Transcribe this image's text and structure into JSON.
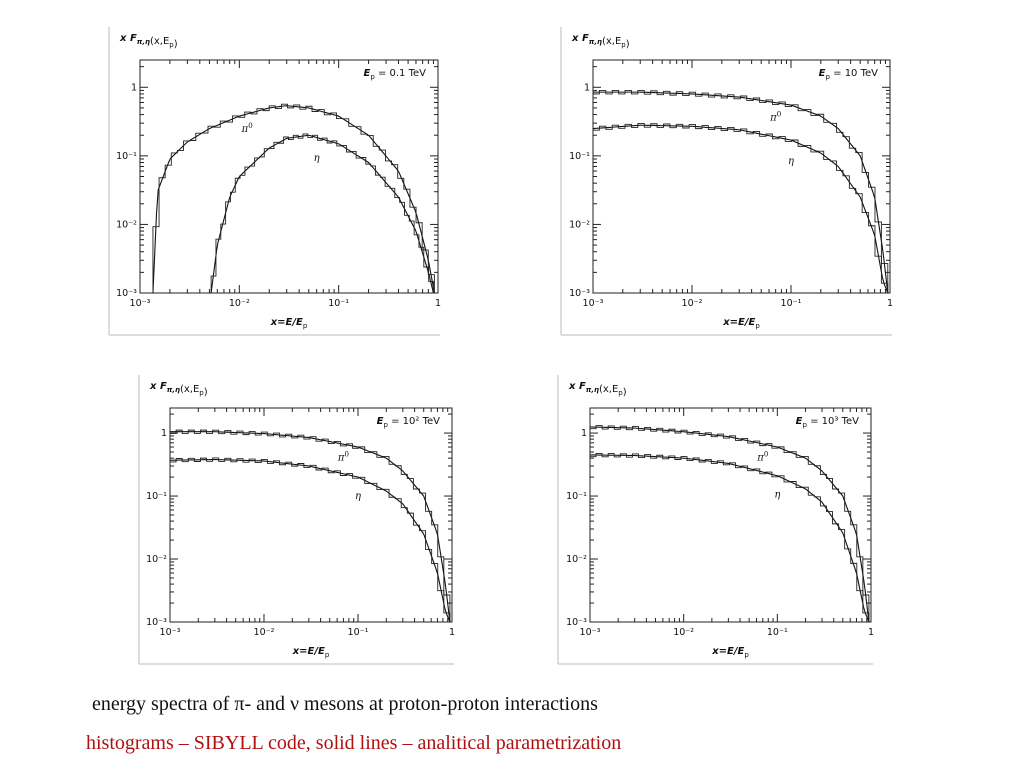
{
  "caption": {
    "line1": "energy spectra of  π- and ν mesons at proton-proton interactions",
    "line2": "histograms – SIBYLL code, solid lines – analitical parametrization"
  },
  "chart_data": [
    {
      "type": "line",
      "ylabel": "x F_{π,η}(x,E_p)",
      "xlabel": "x=E/E_p",
      "energy_label": "E_p = 0.1 TeV",
      "x_scale": "log",
      "y_scale": "log",
      "xlim": [
        0.001,
        1
      ],
      "ylim": [
        0.001,
        2.5
      ],
      "x_ticks": [
        "10⁻³",
        "10⁻²",
        "10⁻¹",
        "1"
      ],
      "y_ticks": [
        "10⁻³",
        "10⁻²",
        "10⁻¹",
        "1"
      ],
      "series": [
        {
          "name": "π⁰",
          "kind": "histogram+analytic",
          "x": [
            0.00135,
            0.0015,
            0.002,
            0.003,
            0.005,
            0.01,
            0.02,
            0.03,
            0.05,
            0.1,
            0.2,
            0.4,
            0.6,
            0.8,
            0.92
          ],
          "y": [
            0.001,
            0.03,
            0.09,
            0.16,
            0.25,
            0.38,
            0.5,
            0.54,
            0.5,
            0.38,
            0.2,
            0.06,
            0.015,
            0.003,
            0.001
          ]
        },
        {
          "name": "η",
          "kind": "histogram+analytic",
          "x": [
            0.0052,
            0.006,
            0.008,
            0.01,
            0.02,
            0.03,
            0.05,
            0.1,
            0.2,
            0.4,
            0.6,
            0.8,
            0.9
          ],
          "y": [
            0.001,
            0.005,
            0.025,
            0.05,
            0.13,
            0.18,
            0.2,
            0.15,
            0.08,
            0.025,
            0.008,
            0.002,
            0.001
          ]
        }
      ]
    },
    {
      "type": "line",
      "ylabel": "x F_{π,η}(x,E_p)",
      "xlabel": "x=E/E_p",
      "energy_label": "E_p = 10 TeV",
      "x_scale": "log",
      "y_scale": "log",
      "xlim": [
        0.001,
        1
      ],
      "ylim": [
        0.001,
        2.5
      ],
      "x_ticks": [
        "10⁻³",
        "10⁻²",
        "10⁻¹",
        "1"
      ],
      "y_ticks": [
        "10⁻³",
        "10⁻²",
        "10⁻¹",
        "1"
      ],
      "series": [
        {
          "name": "π⁰",
          "kind": "histogram+analytic",
          "x": [
            0.001,
            0.003,
            0.01,
            0.03,
            0.1,
            0.2,
            0.3,
            0.5,
            0.7,
            0.85,
            0.95
          ],
          "y": [
            0.85,
            0.85,
            0.8,
            0.72,
            0.55,
            0.38,
            0.25,
            0.1,
            0.025,
            0.004,
            0.001
          ]
        },
        {
          "name": "η",
          "kind": "histogram+analytic",
          "x": [
            0.001,
            0.003,
            0.01,
            0.03,
            0.1,
            0.2,
            0.3,
            0.5,
            0.7,
            0.85,
            0.95
          ],
          "y": [
            0.25,
            0.28,
            0.27,
            0.24,
            0.17,
            0.11,
            0.07,
            0.025,
            0.007,
            0.0015,
            0.001
          ]
        }
      ]
    },
    {
      "type": "line",
      "ylabel": "x F_{π,η}(x,E_p)",
      "xlabel": "x=E/E_p",
      "energy_label": "E_p = 10² TeV",
      "x_scale": "log",
      "y_scale": "log",
      "xlim": [
        0.001,
        1
      ],
      "ylim": [
        0.001,
        2.5
      ],
      "x_ticks": [
        "10⁻³",
        "10⁻²",
        "10⁻¹",
        "1"
      ],
      "y_ticks": [
        "10⁻³",
        "10⁻²",
        "10⁻¹",
        "1"
      ],
      "series": [
        {
          "name": "π⁰",
          "kind": "histogram+analytic",
          "x": [
            0.001,
            0.003,
            0.01,
            0.03,
            0.1,
            0.2,
            0.3,
            0.5,
            0.7,
            0.85,
            0.95
          ],
          "y": [
            1.05,
            1.05,
            0.98,
            0.85,
            0.6,
            0.4,
            0.25,
            0.1,
            0.025,
            0.004,
            0.001
          ]
        },
        {
          "name": "η",
          "kind": "histogram+analytic",
          "x": [
            0.001,
            0.003,
            0.01,
            0.03,
            0.1,
            0.2,
            0.3,
            0.5,
            0.7,
            0.85,
            0.95
          ],
          "y": [
            0.37,
            0.38,
            0.36,
            0.3,
            0.2,
            0.12,
            0.075,
            0.025,
            0.006,
            0.0015,
            0.001
          ]
        }
      ]
    },
    {
      "type": "line",
      "ylabel": "x F_{π,η}(x,E_p)",
      "xlabel": "x=E/E_p",
      "energy_label": "E_p = 10³ TeV",
      "x_scale": "log",
      "y_scale": "log",
      "xlim": [
        0.001,
        1
      ],
      "ylim": [
        0.001,
        2.5
      ],
      "x_ticks": [
        "10⁻³",
        "10⁻²",
        "10⁻¹",
        "1"
      ],
      "y_ticks": [
        "10⁻³",
        "10⁻²",
        "10⁻¹",
        "1"
      ],
      "series": [
        {
          "name": "π⁰",
          "kind": "histogram+analytic",
          "x": [
            0.001,
            0.003,
            0.01,
            0.03,
            0.1,
            0.2,
            0.3,
            0.5,
            0.7,
            0.85,
            0.95
          ],
          "y": [
            1.25,
            1.2,
            1.05,
            0.88,
            0.6,
            0.4,
            0.25,
            0.1,
            0.025,
            0.004,
            0.001
          ]
        },
        {
          "name": "η",
          "kind": "histogram+analytic",
          "x": [
            0.001,
            0.003,
            0.01,
            0.03,
            0.1,
            0.2,
            0.3,
            0.5,
            0.7,
            0.85,
            0.95
          ],
          "y": [
            0.45,
            0.44,
            0.4,
            0.33,
            0.21,
            0.13,
            0.08,
            0.026,
            0.006,
            0.0015,
            0.001
          ]
        }
      ]
    }
  ]
}
